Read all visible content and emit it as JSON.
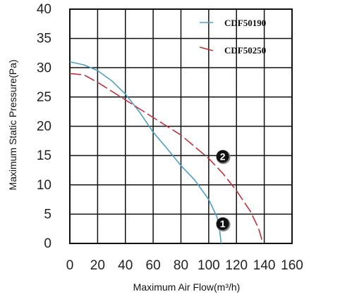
{
  "chart_data": {
    "type": "line",
    "xlabel": "Maximum Air Flow(m³/h)",
    "ylabel": "Maximum Static Pressure(Pa)",
    "xlim": [
      0,
      160
    ],
    "ylim": [
      0,
      40
    ],
    "x_ticks": [
      "0",
      "20",
      "40",
      "60",
      "80",
      "100",
      "120",
      "140",
      "160"
    ],
    "y_ticks": [
      "0",
      "5",
      "10",
      "15",
      "20",
      "25",
      "30",
      "35",
      "40"
    ],
    "grid": true,
    "legend_position": "top-right",
    "series": [
      {
        "name": "CDF50190",
        "color": "#4a9fc9",
        "style": "solid",
        "points": [
          [
            0,
            31
          ],
          [
            10,
            30.5
          ],
          [
            20,
            29.5
          ],
          [
            30,
            27.8
          ],
          [
            40,
            25.5
          ],
          [
            50,
            22.5
          ],
          [
            60,
            19
          ],
          [
            70,
            16.2
          ],
          [
            80,
            13.3
          ],
          [
            90,
            10.8
          ],
          [
            100,
            7.5
          ],
          [
            106,
            4.5
          ],
          [
            108,
            2
          ],
          [
            109,
            0
          ]
        ]
      },
      {
        "name": "CDF50250",
        "color": "#c0303a",
        "style": "dashed",
        "points": [
          [
            0,
            29
          ],
          [
            10,
            28.8
          ],
          [
            20,
            27.5
          ],
          [
            30,
            26
          ],
          [
            40,
            24.5
          ],
          [
            50,
            23
          ],
          [
            60,
            21.5
          ],
          [
            70,
            20
          ],
          [
            80,
            18.5
          ],
          [
            90,
            16.5
          ],
          [
            100,
            14.5
          ],
          [
            110,
            12
          ],
          [
            120,
            9
          ],
          [
            130,
            5.5
          ],
          [
            136,
            2.5
          ],
          [
            139,
            0
          ]
        ]
      }
    ],
    "markers": [
      {
        "label": "1",
        "x": 109,
        "y": 3
      },
      {
        "label": "2",
        "x": 109,
        "y": 14.5
      }
    ]
  }
}
